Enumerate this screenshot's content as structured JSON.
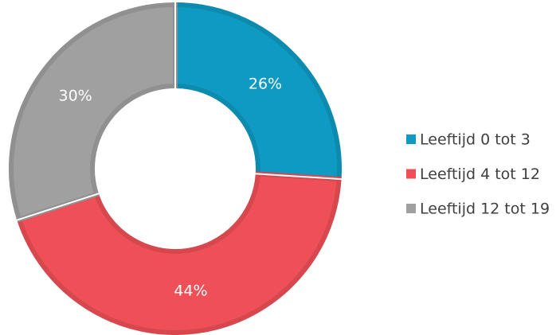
{
  "chart_data": {
    "type": "donut",
    "categories": [
      "Leeftijd 0 tot 3",
      "Leeftijd 4 tot 12",
      "Leeftijd 12 tot 19"
    ],
    "values": [
      26,
      44,
      30
    ],
    "value_labels": [
      "26%",
      "44%",
      "30%"
    ],
    "colors": [
      "#0e9ac2",
      "#ef4f57",
      "#a0a0a0"
    ],
    "legend": "right"
  }
}
